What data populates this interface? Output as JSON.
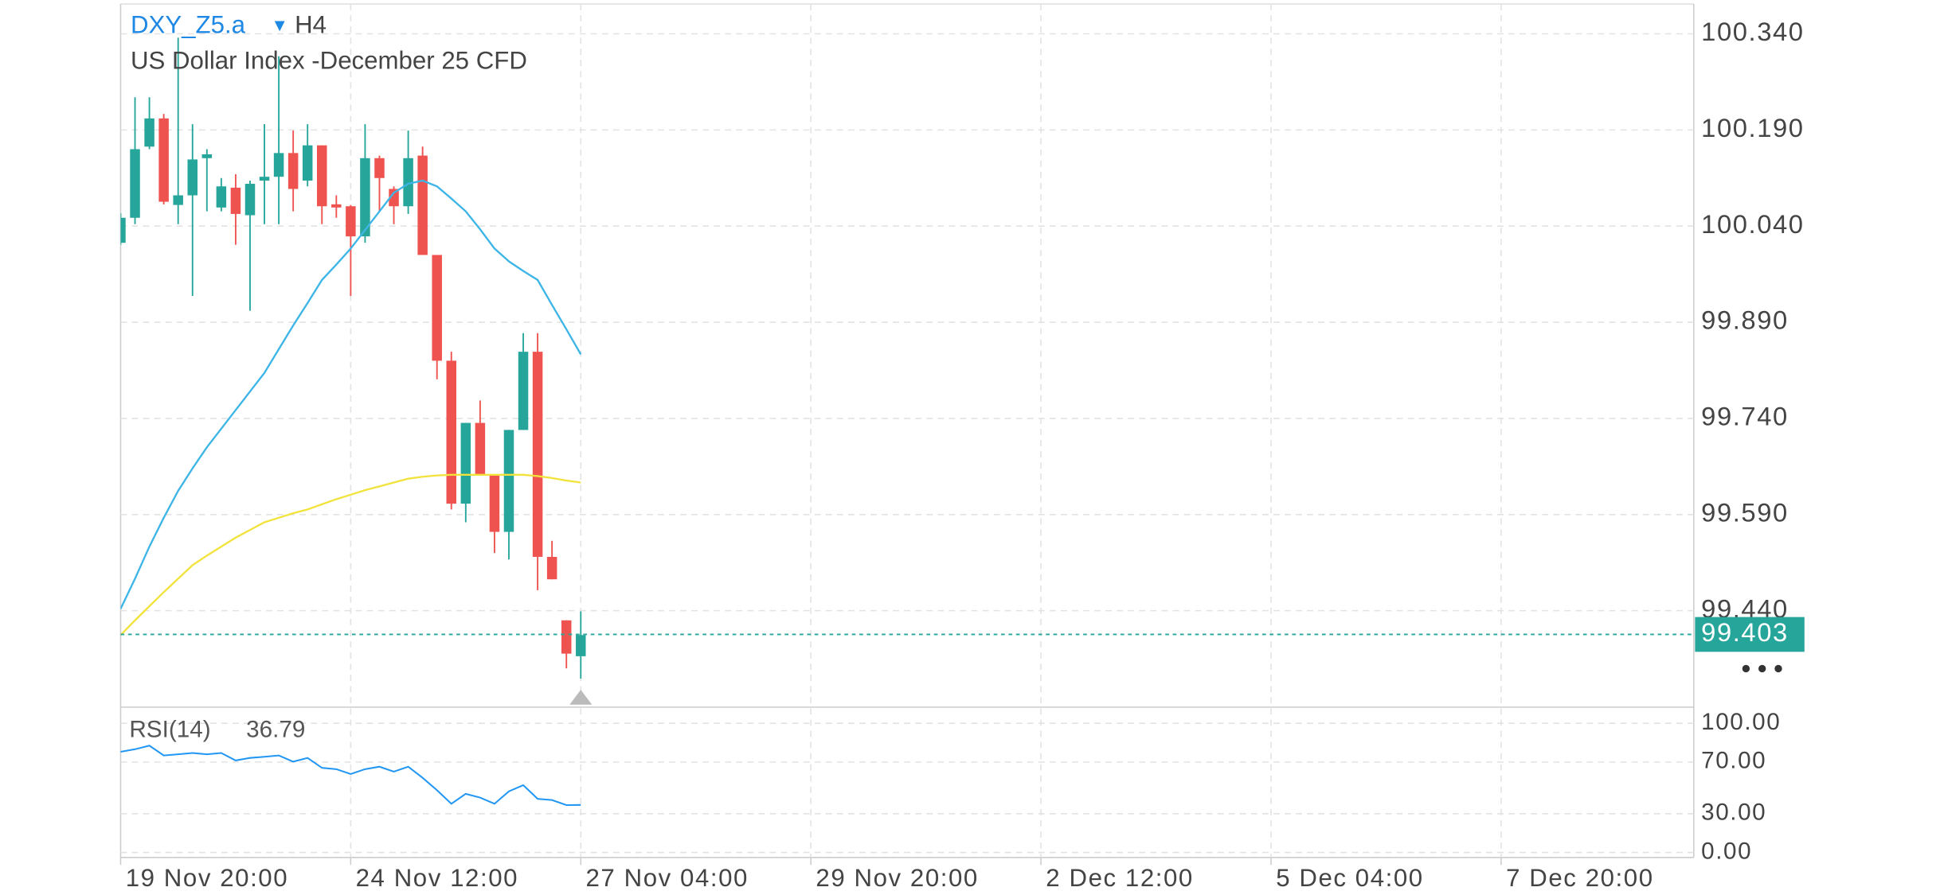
{
  "chart_data": [
    {
      "type": "candlestick",
      "title": "DXY_Z5.a",
      "timeframe": "H4",
      "subtitle": "US Dollar Index -December 25 CFD",
      "up_color": "#26a69a",
      "down_color": "#ef5350",
      "grid": true,
      "open": [
        100.014,
        100.053,
        100.164,
        100.208,
        100.073,
        100.088,
        100.146,
        100.069,
        100.1,
        100.057,
        100.111,
        100.117,
        100.154,
        100.111,
        100.166,
        100.074,
        100.071,
        100.024,
        100.146,
        100.098,
        100.071,
        100.15,
        99.995,
        99.83,
        99.607,
        99.733,
        99.652,
        99.563,
        99.722,
        99.844,
        99.524,
        99.425,
        99.369
      ],
      "high": [
        100.06,
        100.241,
        100.241,
        100.215,
        100.334,
        100.199,
        100.16,
        100.115,
        100.121,
        100.111,
        100.199,
        100.305,
        100.189,
        100.199,
        100.166,
        100.088,
        100.073,
        100.199,
        100.15,
        100.102,
        100.189,
        100.164,
        99.995,
        99.844,
        99.733,
        99.768,
        99.652,
        99.722,
        99.873,
        99.873,
        99.549,
        99.425,
        99.439
      ],
      "low": [
        100.011,
        100.043,
        100.16,
        100.074,
        100.043,
        99.931,
        100.063,
        100.063,
        100.011,
        99.908,
        100.043,
        100.043,
        100.063,
        100.102,
        100.043,
        100.053,
        99.931,
        100.014,
        100.063,
        100.043,
        100.059,
        99.995,
        99.801,
        99.598,
        99.578,
        99.652,
        99.53,
        99.52,
        99.722,
        99.472,
        99.489,
        99.35,
        99.334
      ],
      "close": [
        100.053,
        100.16,
        100.208,
        100.078,
        100.088,
        100.144,
        100.152,
        100.102,
        100.059,
        100.106,
        100.117,
        100.154,
        100.098,
        100.166,
        100.071,
        100.069,
        100.024,
        100.146,
        100.115,
        100.071,
        100.146,
        99.995,
        99.83,
        99.607,
        99.733,
        99.652,
        99.563,
        99.722,
        99.844,
        99.524,
        99.489,
        99.373,
        99.402
      ],
      "series": [
        {
          "color": "#3db5e6",
          "values": [
            99.443,
            99.49,
            99.54,
            99.585,
            99.627,
            99.662,
            99.695,
            99.724,
            99.753,
            99.782,
            99.811,
            99.848,
            99.885,
            99.92,
            99.956,
            99.98,
            100.005,
            100.034,
            100.063,
            100.092,
            100.106,
            100.111,
            100.102,
            100.083,
            100.063,
            100.035,
            100.005,
            99.985,
            99.97,
            99.956,
            99.917,
            99.879,
            99.84
          ]
        },
        {
          "color": "#f2e33c",
          "values": [
            99.402,
            99.425,
            99.447,
            99.469,
            99.49,
            99.511,
            99.526,
            99.54,
            99.554,
            99.566,
            99.578,
            99.585,
            99.592,
            99.598,
            99.606,
            99.614,
            99.621,
            99.628,
            99.634,
            99.64,
            99.646,
            99.649,
            99.651,
            99.652,
            99.652,
            99.652,
            99.652,
            99.652,
            99.652,
            99.65,
            99.647,
            99.643,
            99.64
          ]
        }
      ],
      "last_price": 99.403,
      "last_price_color": "#26a69a",
      "xlim": [
        0,
        109.4
      ],
      "ylim": [
        99.2915,
        100.3865
      ],
      "yticks": [
        {
          "value": 99.44,
          "label": "99.440"
        },
        {
          "value": 99.59,
          "label": "99.590"
        },
        {
          "value": 99.74,
          "label": "99.740"
        },
        {
          "value": 99.89,
          "label": "99.890"
        },
        {
          "value": 100.04,
          "label": "100.040"
        },
        {
          "value": 100.19,
          "label": "100.190"
        },
        {
          "value": 100.34,
          "label": "100.340"
        }
      ]
    },
    {
      "type": "line",
      "title": "RSI(14)",
      "color": "#2196f3",
      "grid": true,
      "values": [
        77.9,
        79.9,
        82.7,
        75.1,
        76.0,
        77.0,
        76.0,
        77.0,
        71.2,
        73.2,
        74.1,
        75.1,
        70.3,
        73.2,
        65.5,
        64.5,
        60.7,
        64.5,
        66.4,
        62.6,
        66.4,
        57.8,
        48.2,
        37.7,
        45.4,
        42.5,
        37.7,
        47.3,
        52.1,
        41.5,
        40.6,
        36.7,
        36.79
      ],
      "xlim": [
        0,
        109.4
      ],
      "xticks": [
        {
          "value": 0,
          "label": "19 Nov 20:00"
        },
        {
          "value": 16,
          "label": "24 Nov 12:00"
        },
        {
          "value": 32,
          "label": "27 Nov 04:00"
        },
        {
          "value": 48,
          "label": "29 Nov 20:00"
        },
        {
          "value": 64,
          "label": "2 Dec 12:00"
        },
        {
          "value": 80,
          "label": "5 Dec 04:00"
        },
        {
          "value": 96,
          "label": "7 Dec 20:00"
        }
      ],
      "ylim": [
        0,
        100
      ],
      "yticks": [
        {
          "value": 0,
          "label": "0.00"
        },
        {
          "value": 30,
          "label": "30.00"
        },
        {
          "value": 70,
          "label": "70.00"
        },
        {
          "value": 100,
          "label": "100.00"
        }
      ]
    }
  ]
}
